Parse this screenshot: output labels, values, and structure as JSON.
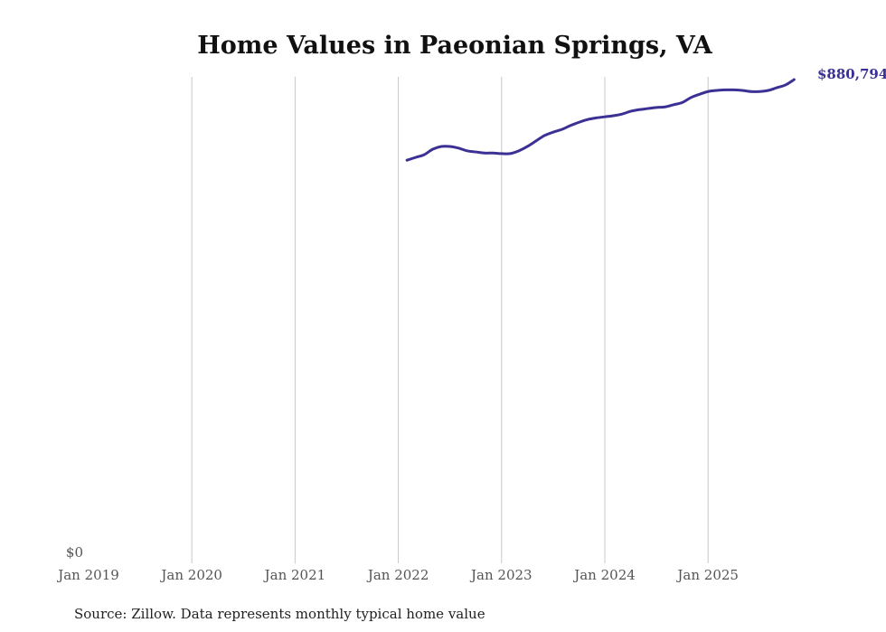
{
  "chart_data": {
    "type": "line",
    "title": "Home Values in Paeonian Springs, VA",
    "xlabel": "",
    "ylabel": "",
    "source": "Source: Zillow. Data represents monthly typical home value",
    "x_ticks": [
      "Jan 2019",
      "Jan 2020",
      "Jan 2021",
      "Jan 2022",
      "Jan 2023",
      "Jan 2024",
      "Jan 2025"
    ],
    "y_ticks": [
      "$0"
    ],
    "ylim": [
      0,
      880794
    ],
    "xlim_years": [
      2019,
      2025.9
    ],
    "grid": "vertical",
    "end_label": "$880,794",
    "line_color": "#3b3194",
    "series": [
      {
        "name": "Typical home value",
        "start": "Feb 2022",
        "frequency": "monthly",
        "values": [
          734000,
          739000,
          744000,
          754000,
          759000,
          759000,
          756000,
          751000,
          749000,
          747000,
          747000,
          746000,
          746000,
          751000,
          759000,
          769000,
          779000,
          785000,
          790000,
          797000,
          803000,
          808000,
          811000,
          813000,
          815000,
          818000,
          823000,
          826000,
          828000,
          830000,
          831000,
          835000,
          839000,
          848000,
          854000,
          859000,
          861000,
          862000,
          862000,
          861000,
          859000,
          859000,
          861000,
          866000,
          871000,
          880794
        ]
      }
    ]
  }
}
